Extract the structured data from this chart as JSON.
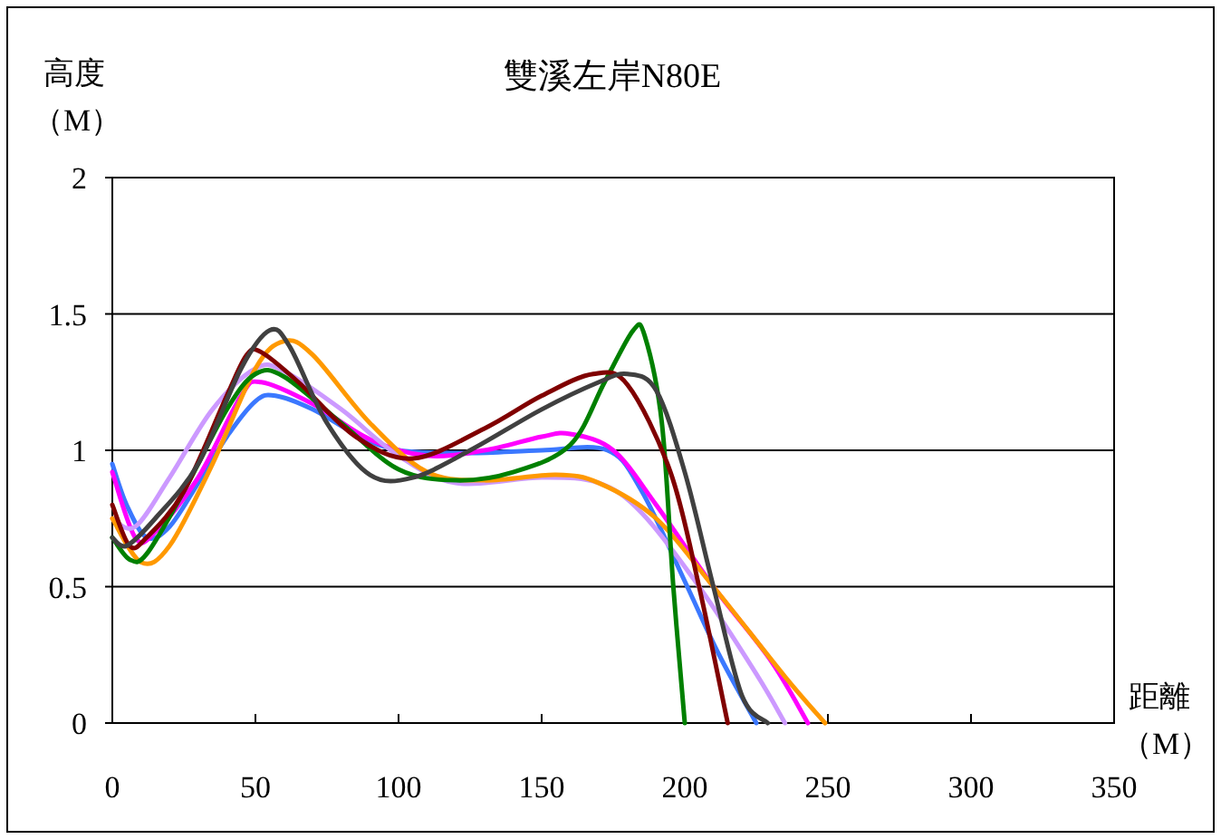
{
  "chart_data": {
    "type": "line",
    "title": "雙溪左岸N80E",
    "xlabel": "距離（M）",
    "ylabel": "高度（M）",
    "xlim": [
      0,
      350
    ],
    "xticks": [
      0,
      50,
      100,
      150,
      200,
      250,
      300,
      350
    ],
    "ylim": [
      0,
      2
    ],
    "yticks": [
      0,
      0.5,
      1,
      1.5,
      2
    ],
    "grid": "y",
    "marker": "none",
    "line_style": "solid",
    "series": [
      {
        "color": "#3b78ff",
        "x": [
          0,
          5,
          12,
          20,
          30,
          40,
          50,
          57,
          70,
          85,
          100,
          125,
          150,
          173,
          185,
          200,
          212,
          225
        ],
        "values": [
          0.95,
          0.8,
          0.68,
          0.72,
          0.88,
          1.05,
          1.18,
          1.2,
          1.15,
          1.06,
          1.0,
          0.99,
          1.0,
          1.0,
          0.85,
          0.52,
          0.25,
          0
        ]
      },
      {
        "color": "#ff00ff",
        "x": [
          0,
          8,
          15,
          30,
          45,
          52,
          70,
          90,
          110,
          130,
          150,
          160,
          175,
          190,
          210,
          230,
          243
        ],
        "values": [
          0.92,
          0.68,
          0.7,
          0.9,
          1.2,
          1.25,
          1.17,
          1.04,
          0.98,
          1.0,
          1.05,
          1.06,
          1.0,
          0.8,
          0.5,
          0.23,
          0
        ]
      },
      {
        "color": "#cc99ff",
        "x": [
          0,
          8,
          20,
          35,
          50,
          60,
          80,
          100,
          120,
          150,
          170,
          185,
          205,
          225,
          235
        ],
        "values": [
          0.75,
          0.72,
          0.9,
          1.15,
          1.3,
          1.29,
          1.15,
          0.98,
          0.88,
          0.9,
          0.88,
          0.77,
          0.5,
          0.18,
          0
        ]
      },
      {
        "color": "#ff9900",
        "x": [
          0,
          10,
          20,
          35,
          50,
          60,
          70,
          90,
          110,
          130,
          155,
          170,
          190,
          210,
          235,
          249
        ],
        "values": [
          0.75,
          0.59,
          0.65,
          0.95,
          1.3,
          1.4,
          1.35,
          1.1,
          0.92,
          0.89,
          0.91,
          0.88,
          0.75,
          0.5,
          0.17,
          0
        ]
      },
      {
        "color": "#008000",
        "x": [
          0,
          6,
          12,
          25,
          40,
          50,
          60,
          80,
          100,
          120,
          140,
          160,
          172,
          182,
          186,
          192,
          196,
          200
        ],
        "values": [
          0.68,
          0.6,
          0.62,
          0.85,
          1.15,
          1.28,
          1.27,
          1.1,
          0.93,
          0.89,
          0.92,
          1.02,
          1.25,
          1.44,
          1.42,
          1.1,
          0.5,
          0
        ]
      },
      {
        "color": "#800000",
        "x": [
          0,
          6,
          12,
          25,
          40,
          47,
          52,
          65,
          85,
          105,
          130,
          150,
          168,
          180,
          195,
          205,
          215
        ],
        "values": [
          0.8,
          0.65,
          0.68,
          0.85,
          1.2,
          1.35,
          1.36,
          1.25,
          1.05,
          0.97,
          1.08,
          1.2,
          1.28,
          1.24,
          0.92,
          0.5,
          0
        ]
      },
      {
        "color": "#404040",
        "x": [
          0,
          5,
          15,
          30,
          45,
          55,
          62,
          75,
          90,
          105,
          125,
          150,
          170,
          180,
          190,
          200,
          210,
          220,
          229
        ],
        "values": [
          0.68,
          0.65,
          0.75,
          0.95,
          1.3,
          1.44,
          1.38,
          1.1,
          0.91,
          0.9,
          1.0,
          1.15,
          1.25,
          1.28,
          1.22,
          0.92,
          0.5,
          0.1,
          0
        ]
      }
    ]
  }
}
